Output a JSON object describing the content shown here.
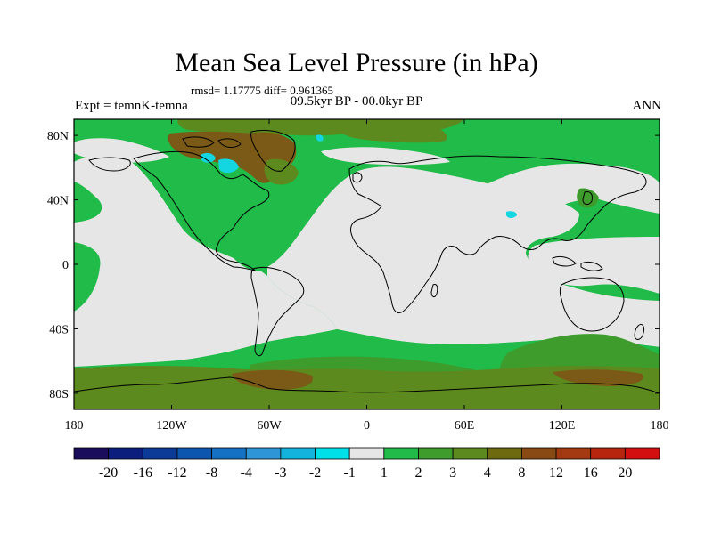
{
  "chart_data": {
    "type": "heatmap",
    "title": "Mean Sea Level Pressure (in hPa)",
    "stats_text": "rmsd= 1.17775  diff= 0.961365",
    "subtitle": "09.5kyr BP - 00.0kyr BP",
    "left_label": "Expt = temnK-temna",
    "right_label": "ANN",
    "x_range": [
      -180,
      180
    ],
    "y_range": [
      -90,
      90
    ],
    "x_ticks": [
      {
        "value": -180,
        "label": "180"
      },
      {
        "value": -120,
        "label": "120W"
      },
      {
        "value": -60,
        "label": "60W"
      },
      {
        "value": 0,
        "label": "0"
      },
      {
        "value": 60,
        "label": "60E"
      },
      {
        "value": 120,
        "label": "120E"
      },
      {
        "value": 180,
        "label": "180"
      }
    ],
    "y_ticks": [
      {
        "value": 80,
        "label": "80N"
      },
      {
        "value": 40,
        "label": "40N"
      },
      {
        "value": 0,
        "label": "0"
      },
      {
        "value": -40,
        "label": "40S"
      },
      {
        "value": -80,
        "label": "80S"
      }
    ],
    "colorbar": {
      "colors": [
        "#1a0e5c",
        "#0b1e7e",
        "#0c3a97",
        "#0d56b0",
        "#1571c4",
        "#2e95d6",
        "#14b3de",
        "#00e0e8",
        "#e6e6e6",
        "#20bb48",
        "#3e9c2d",
        "#5c8a1e",
        "#6e6a10",
        "#8a4a14",
        "#a33a12",
        "#b8250f",
        "#d40f0f"
      ],
      "labels": [
        "-20",
        "-16",
        "-12",
        "-8",
        "-4",
        "-3",
        "-2",
        "-1",
        "1",
        "2",
        "3",
        "4",
        "8",
        "12",
        "16",
        "20"
      ]
    },
    "colors": {
      "neutral": "#e6e6e6",
      "green": "#20bb48",
      "darkgreen": "#3e9c2d",
      "olive": "#5c8a1e",
      "brown": "#7a5a16",
      "cyan": "#14d6e0",
      "coast": "#000000"
    }
  }
}
